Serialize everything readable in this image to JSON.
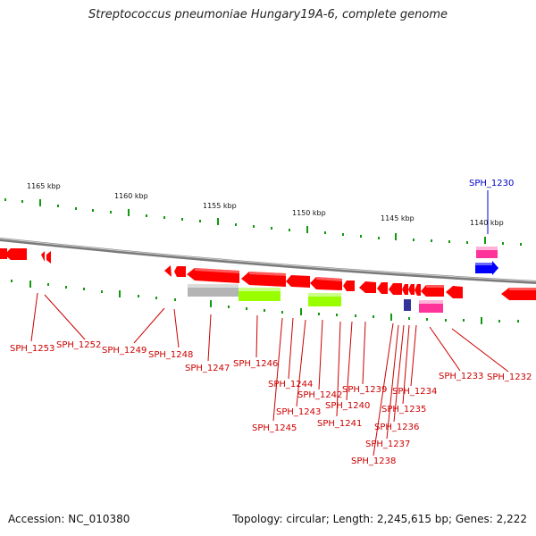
{
  "title": "Streptococcus pneumoniae Hungary19A-6, complete genome",
  "footer": {
    "accession": "Accession: NC_010380",
    "topology": "Topology: circular; Length: 2,245,615 bp; Genes: 2,222"
  },
  "scale_labels": [
    "1165 kbp",
    "1160 kbp",
    "1155 kbp",
    "1150 kbp",
    "1145 kbp",
    "1140 kbp"
  ],
  "colors": {
    "forward_gene": "#ff0000",
    "highlight_gene": "#0000ff",
    "pink_feature": "#ff3399",
    "green_feature": "#99ff00",
    "gray_feature": "#b4b4b4",
    "navy_feature": "#333399",
    "scale_tick": "#119911",
    "genome_line": "#888888"
  },
  "genes": {
    "top_label": "SPH_1230",
    "bottom_labels": [
      "SPH_1253",
      "SPH_1252",
      "SPH_1249",
      "SPH_1248",
      "SPH_1247",
      "SPH_1246",
      "SPH_1244",
      "SPH_1243",
      "SPH_1245",
      "SPH_1242",
      "SPH_1240",
      "SPH_1241",
      "SPH_1239",
      "SPH_1238",
      "SPH_1237",
      "SPH_1236",
      "SPH_1235",
      "SPH_1234",
      "SPH_1233",
      "SPH_1232"
    ]
  }
}
